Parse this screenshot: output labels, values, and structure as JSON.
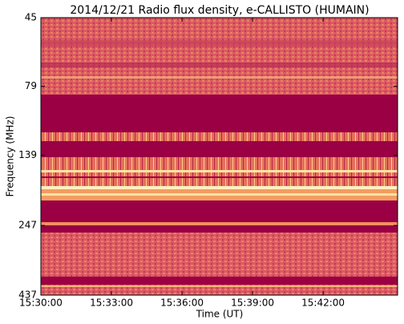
{
  "chart_data": {
    "type": "spectrogram",
    "title": "2014/12/21  Radio flux density, e-CALLISTO (HUMAIN)",
    "x_label": "Time (UT)",
    "y_label": "Frequency (MHz)",
    "xlim": [
      "15:30:00",
      "15:45:10"
    ],
    "xticks": [
      "15:30:00",
      "15:33:00",
      "15:36:00",
      "15:39:00",
      "15:42:00"
    ],
    "ylim": [
      45,
      437
    ],
    "yticks": [
      45,
      79,
      139,
      247,
      437
    ],
    "y_log": true,
    "y_inverted": true
  }
}
